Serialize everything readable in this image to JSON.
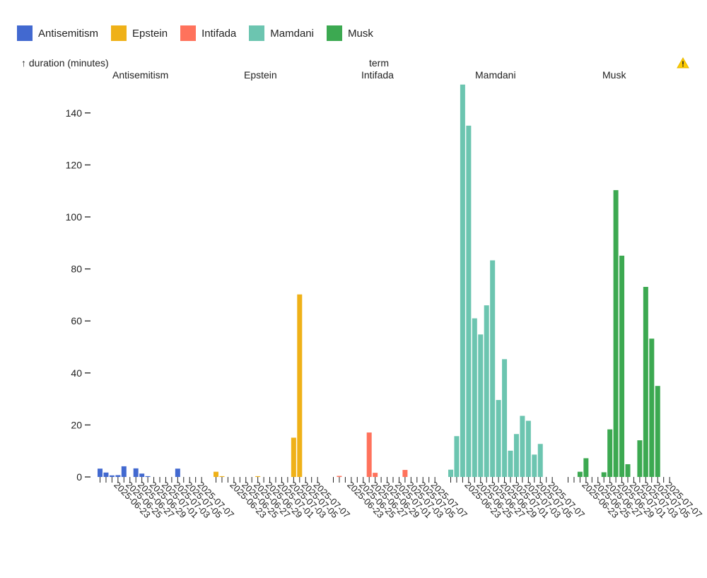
{
  "chart_data": {
    "type": "bar",
    "facet_label": "term",
    "ylabel": "↑ duration (minutes)",
    "ylim": [
      0,
      150
    ],
    "yticks": [
      0,
      20,
      40,
      60,
      80,
      100,
      120,
      140
    ],
    "dates": [
      "2025-06-20",
      "2025-06-21",
      "2025-06-22",
      "2025-06-23",
      "2025-06-24",
      "2025-06-25",
      "2025-06-26",
      "2025-06-27",
      "2025-06-28",
      "2025-06-29",
      "2025-06-30",
      "2025-07-01",
      "2025-07-02",
      "2025-07-03",
      "2025-07-04",
      "2025-07-05",
      "2025-07-06",
      "2025-07-07"
    ],
    "tick_labels": [
      "2025-06-23",
      "2025-06-25",
      "2025-06-27",
      "2025-06-29",
      "2025-07-01",
      "2025-07-03",
      "2025-07-05",
      "2025-07-07"
    ],
    "series": [
      {
        "name": "Antisemitism",
        "color": "#4269d0",
        "values": [
          3.2,
          1.7,
          0.6,
          0.7,
          4.1,
          0,
          3.3,
          1.3,
          0.3,
          0,
          0,
          0,
          0,
          3.2,
          0,
          0,
          0,
          0
        ]
      },
      {
        "name": "Epstein",
        "color": "#efb118",
        "values": [
          2.0,
          0.3,
          0,
          0,
          0,
          0,
          0,
          0.3,
          0,
          0,
          0,
          0,
          0,
          15.1,
          70.2,
          0,
          0,
          0
        ]
      },
      {
        "name": "Intifada",
        "color": "#ff725c",
        "values": [
          0,
          0.4,
          0,
          0,
          0,
          0,
          17.1,
          1.6,
          0,
          0,
          0,
          0,
          2.7,
          0,
          0,
          0,
          0,
          0
        ]
      },
      {
        "name": "Mamdani",
        "color": "#6cc5b0",
        "values": [
          2.8,
          15.7,
          150.9,
          135.1,
          61.0,
          54.8,
          66.0,
          83.3,
          29.6,
          45.3,
          10.1,
          16.5,
          23.5,
          21.6,
          8.6,
          12.7,
          0,
          0
        ]
      },
      {
        "name": "Musk",
        "color": "#3ca951",
        "values": [
          0,
          0,
          2.0,
          7.2,
          0,
          0,
          1.8,
          18.3,
          110.3,
          85.1,
          4.9,
          0,
          14.1,
          73.1,
          53.2,
          35.0,
          0,
          0
        ]
      }
    ]
  }
}
